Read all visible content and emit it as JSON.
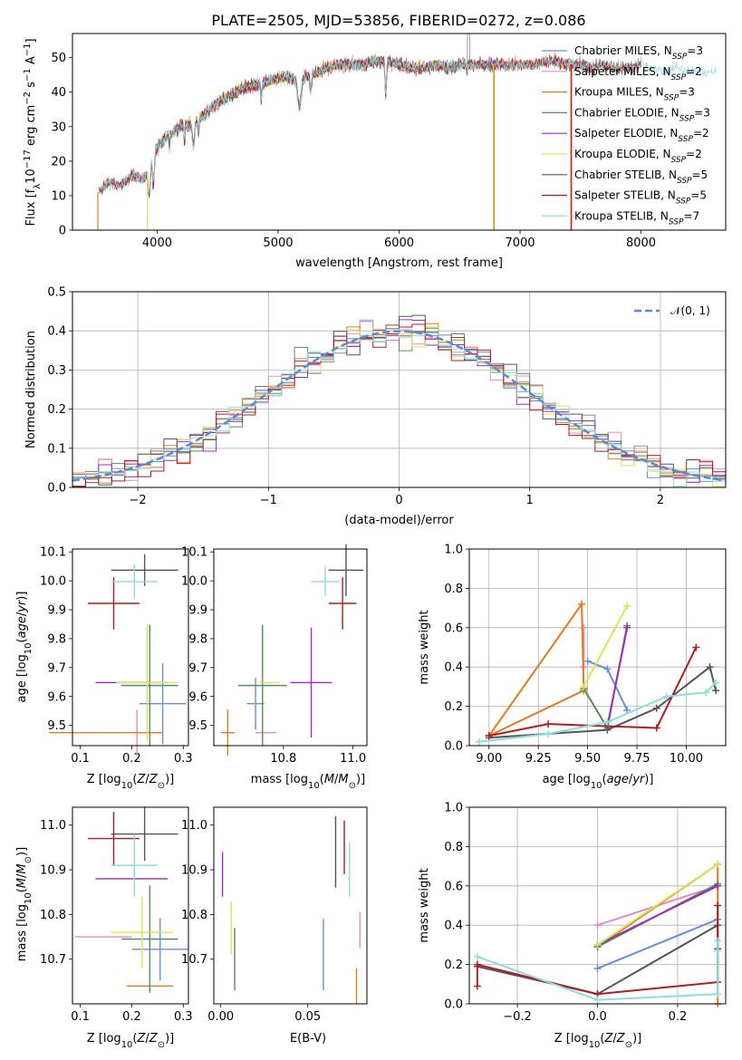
{
  "title": "PLATE=2505, MJD=53856, FIBERID=0272, z=0.086",
  "palette": {
    "Chabrier MILES": "#6b8fd6",
    "Salpeter MILES": "#e88cbf",
    "Kroupa MILES": "#e07b22",
    "Chabrier ELODIE": "#5a8a5a",
    "Salpeter ELODIE": "#9b2fb5",
    "Kroupa ELODIE": "#d9e35b",
    "Chabrier STELIB": "#555555",
    "Salpeter STELIB": "#b01c24",
    "Kroupa STELIB": "#8edbe0"
  },
  "chart_data": [
    {
      "type": "line",
      "panel": "spectrum",
      "title": "PLATE=2505, MJD=53856, FIBERID=0272, z=0.086",
      "xlabel": "wavelength [Angstrom, rest frame]",
      "ylabel": "Flux [f_λ10^-17 erg cm^-2 s^-1 A^-1]",
      "xlim": [
        3300,
        8700
      ],
      "ylim": [
        0,
        57
      ],
      "xticks": [
        "4000",
        "5000",
        "6000",
        "7000",
        "8000"
      ],
      "yticks": [
        "0",
        "10",
        "20",
        "30",
        "40",
        "50"
      ],
      "legend": [
        {
          "model": "Chabrier MILES",
          "label": "Chabrier MILES, N",
          "sub": "SSP",
          "eq": "=3"
        },
        {
          "model": "Salpeter MILES",
          "label": "Salpeter MILES, N",
          "sub": "SSP",
          "eq": "=2"
        },
        {
          "model": "Kroupa MILES",
          "label": "Kroupa MILES, N",
          "sub": "SSP",
          "eq": "=3"
        },
        {
          "model": "Chabrier ELODIE",
          "label": "Chabrier ELODIE, N",
          "sub": "SSP",
          "eq": "=3"
        },
        {
          "model": "Salpeter ELODIE",
          "label": "Salpeter ELODIE, N",
          "sub": "SSP",
          "eq": "=2"
        },
        {
          "model": "Kroupa ELODIE",
          "label": "Kroupa ELODIE, N",
          "sub": "SSP",
          "eq": "=2"
        },
        {
          "model": "Chabrier STELIB",
          "label": "Chabrier STELIB, N",
          "sub": "SSP",
          "eq": "=5"
        },
        {
          "model": "Salpeter STELIB",
          "label": "Salpeter STELIB, N",
          "sub": "SSP",
          "eq": "=5"
        },
        {
          "model": "Kroupa STELIB",
          "label": "Kroupa STELIB, N",
          "sub": "SSP",
          "eq": "=7"
        }
      ],
      "legend_position": "top-right",
      "continuum": [
        [
          3510,
          11
        ],
        [
          3600,
          14
        ],
        [
          3700,
          13
        ],
        [
          3800,
          16
        ],
        [
          3900,
          15
        ],
        [
          3950,
          20
        ],
        [
          4000,
          24
        ],
        [
          4100,
          28
        ],
        [
          4200,
          30
        ],
        [
          4300,
          31
        ],
        [
          4400,
          34
        ],
        [
          4500,
          37
        ],
        [
          4600,
          39
        ],
        [
          4700,
          41
        ],
        [
          4800,
          42
        ],
        [
          4900,
          43
        ],
        [
          5000,
          44
        ],
        [
          5100,
          44
        ],
        [
          5200,
          44
        ],
        [
          5300,
          45
        ],
        [
          5400,
          47
        ],
        [
          5500,
          48
        ],
        [
          5600,
          48
        ],
        [
          5700,
          48
        ],
        [
          5800,
          49
        ],
        [
          5900,
          49
        ],
        [
          6000,
          48
        ],
        [
          6100,
          47
        ],
        [
          6200,
          47
        ],
        [
          6300,
          48
        ],
        [
          6400,
          47
        ],
        [
          6500,
          48
        ],
        [
          6600,
          48
        ],
        [
          6700,
          48
        ],
        [
          6800,
          48
        ],
        [
          6900,
          48
        ],
        [
          7000,
          48
        ],
        [
          7100,
          48
        ],
        [
          7200,
          49
        ],
        [
          7300,
          49
        ],
        [
          7400,
          48
        ],
        [
          7500,
          48
        ],
        [
          7600,
          47
        ],
        [
          7700,
          48
        ],
        [
          7800,
          47
        ],
        [
          7900,
          47
        ],
        [
          8000,
          48
        ],
        [
          8100,
          47
        ],
        [
          8200,
          46
        ],
        [
          8300,
          47
        ],
        [
          8400,
          46
        ],
        [
          8500,
          46
        ],
        [
          8600,
          46
        ]
      ],
      "drops": [
        {
          "x": 3510,
          "model": "Kroupa MILES"
        },
        {
          "x": 3920,
          "model": "Kroupa ELODIE"
        },
        {
          "x": 6780,
          "model": "Kroupa ELODIE"
        },
        {
          "x": 6785,
          "model": "Kroupa MILES"
        },
        {
          "x": 7420,
          "model": "Kroupa MILES"
        },
        {
          "x": 7425,
          "model": "Salpeter STELIB"
        }
      ],
      "spikes": [
        6565,
        6585
      ]
    },
    {
      "type": "histogram",
      "panel": "residuals",
      "xlabel": "(data-model)/error",
      "ylabel": "Normed distribution",
      "xlim": [
        -2.5,
        2.5
      ],
      "ylim": [
        0,
        0.5
      ],
      "xticks": [
        "−2",
        "−1",
        "0",
        "1",
        "2"
      ],
      "yticks": [
        "0.0",
        "0.1",
        "0.2",
        "0.3",
        "0.4",
        "0.5"
      ],
      "legend": "𝒩(0, 1)",
      "legend_position": "top-right",
      "bin_width": 0.1
    },
    {
      "type": "scatter",
      "panel": "age-vs-Z",
      "xlabel": "Z [log10(Z/Z☉)]",
      "ylabel": "age [log10(age/yr)]",
      "xlim": [
        0.085,
        0.31
      ],
      "ylim": [
        9.43,
        10.11
      ],
      "xticks": [
        "0.1",
        "0.2",
        "0.3"
      ],
      "yticks": [
        "9.5",
        "9.6",
        "9.7",
        "9.8",
        "9.9",
        "10.0",
        "10.1"
      ],
      "points": [
        {
          "model": "Chabrier MILES",
          "x": 0.26,
          "y": 9.575,
          "xerr": 0.045,
          "yerr": 0.14
        },
        {
          "model": "Salpeter MILES",
          "x": 0.21,
          "y": 9.475,
          "xerr": 0.0,
          "yerr": 0.08
        },
        {
          "model": "Kroupa MILES",
          "x": 0.15,
          "y": 9.475,
          "xerr": 0.11,
          "yerr": 0.0
        },
        {
          "model": "Chabrier ELODIE",
          "x": 0.235,
          "y": 9.638,
          "xerr": 0.055,
          "yerr": 0.21
        },
        {
          "model": "Salpeter ELODIE",
          "x": 0.2,
          "y": 9.648,
          "xerr": 0.07,
          "yerr": 0.0
        },
        {
          "model": "Kroupa ELODIE",
          "x": 0.23,
          "y": 9.648,
          "xerr": 0.06,
          "yerr": 0.2
        },
        {
          "model": "Chabrier STELIB",
          "x": 0.225,
          "y": 10.037,
          "xerr": 0.065,
          "yerr": 0.055
        },
        {
          "model": "Salpeter STELIB",
          "x": 0.165,
          "y": 9.922,
          "xerr": 0.05,
          "yerr": 0.09
        },
        {
          "model": "Kroupa STELIB",
          "x": 0.205,
          "y": 9.997,
          "xerr": 0.045,
          "yerr": 0.06
        }
      ]
    },
    {
      "type": "scatter",
      "panel": "age-vs-mass",
      "xlabel": "mass [log10(M/M☉)]",
      "ylabel": "",
      "xlim": [
        10.6,
        11.04
      ],
      "ylim": [
        9.43,
        10.11
      ],
      "xticks": [
        "10.8",
        "11.0"
      ],
      "yticks": [
        "9.5",
        "9.6",
        "9.7",
        "9.8",
        "9.9",
        "10.0",
        "10.1"
      ],
      "points": [
        {
          "model": "Chabrier MILES",
          "x": 10.72,
          "y": 9.575,
          "xerr": 0.025,
          "yerr": 0.09
        },
        {
          "model": "Salpeter MILES",
          "x": 10.75,
          "y": 9.475,
          "xerr": 0.03,
          "yerr": 0.0
        },
        {
          "model": "Kroupa MILES",
          "x": 10.64,
          "y": 9.475,
          "xerr": 0.02,
          "yerr": 0.08
        },
        {
          "model": "Chabrier ELODIE",
          "x": 10.74,
          "y": 9.638,
          "xerr": 0.07,
          "yerr": 0.21
        },
        {
          "model": "Salpeter ELODIE",
          "x": 10.88,
          "y": 9.648,
          "xerr": 0.06,
          "yerr": 0.19
        },
        {
          "model": "Kroupa ELODIE",
          "x": 10.76,
          "y": 9.648,
          "xerr": 0.03,
          "yerr": 0.0
        },
        {
          "model": "Chabrier STELIB",
          "x": 10.98,
          "y": 10.037,
          "xerr": 0.05,
          "yerr": 0.09
        },
        {
          "model": "Salpeter STELIB",
          "x": 10.97,
          "y": 9.922,
          "xerr": 0.04,
          "yerr": 0.09
        },
        {
          "model": "Kroupa STELIB",
          "x": 10.92,
          "y": 9.997,
          "xerr": 0.04,
          "yerr": 0.05
        }
      ]
    },
    {
      "type": "line",
      "panel": "weight-vs-age",
      "xlabel": "age [log10(age/yr)]",
      "ylabel": "mass weight",
      "xlim": [
        8.9,
        10.2
      ],
      "ylim": [
        0,
        1.0
      ],
      "xticks": [
        "9.00",
        "9.25",
        "9.50",
        "9.75",
        "10.00"
      ],
      "yticks": [
        "0.0",
        "0.2",
        "0.4",
        "0.6",
        "0.8",
        "1.0"
      ],
      "series": [
        {
          "model": "Chabrier MILES",
          "points": [
            [
              9.5,
              0.43
            ],
            [
              9.6,
              0.39
            ],
            [
              9.7,
              0.18
            ]
          ]
        },
        {
          "model": "Salpeter MILES",
          "points": [
            [
              9.48,
              0.6
            ],
            [
              9.48,
              0.4
            ]
          ]
        },
        {
          "model": "Kroupa MILES",
          "points": [
            [
              9.0,
              0.05
            ],
            [
              9.47,
              0.72
            ],
            [
              9.48,
              0.28
            ],
            [
              9.0,
              0.05
            ]
          ]
        },
        {
          "model": "Chabrier ELODIE",
          "points": [
            [
              9.48,
              0.29
            ],
            [
              9.6,
              0.09
            ],
            [
              9.7,
              0.61
            ]
          ]
        },
        {
          "model": "Salpeter ELODIE",
          "points": [
            [
              9.6,
              0.1
            ],
            [
              9.7,
              0.6
            ]
          ]
        },
        {
          "model": "Kroupa ELODIE",
          "points": [
            [
              9.48,
              0.3
            ],
            [
              9.7,
              0.71
            ]
          ]
        },
        {
          "model": "Chabrier STELIB",
          "points": [
            [
              9.0,
              0.04
            ],
            [
              9.6,
              0.08
            ],
            [
              9.85,
              0.19
            ],
            [
              10.12,
              0.4
            ],
            [
              10.15,
              0.28
            ]
          ]
        },
        {
          "model": "Salpeter STELIB",
          "points": [
            [
              9.0,
              0.05
            ],
            [
              9.3,
              0.11
            ],
            [
              9.85,
              0.09
            ],
            [
              10.05,
              0.5
            ]
          ]
        },
        {
          "model": "Kroupa STELIB",
          "points": [
            [
              8.95,
              0.02
            ],
            [
              9.3,
              0.06
            ],
            [
              9.6,
              0.12
            ],
            [
              9.9,
              0.25
            ],
            [
              10.1,
              0.27
            ],
            [
              10.15,
              0.32
            ]
          ]
        }
      ]
    },
    {
      "type": "scatter",
      "panel": "mass-vs-Z",
      "xlabel": "Z [log10(Z/Z☉)]",
      "ylabel": "mass [log10(M/M☉)]",
      "xlim": [
        0.085,
        0.31
      ],
      "ylim": [
        10.6,
        11.04
      ],
      "xticks": [
        "0.1",
        "0.2",
        "0.3"
      ],
      "yticks": [
        "10.7",
        "10.8",
        "10.9",
        "11.0"
      ],
      "points": [
        {
          "model": "Chabrier MILES",
          "x": 0.255,
          "y": 10.722,
          "xerr": 0.055,
          "yerr": 0.07
        },
        {
          "model": "Salpeter MILES",
          "x": 0.145,
          "y": 10.75,
          "xerr": 0.055,
          "yerr": 0.0
        },
        {
          "model": "Kroupa MILES",
          "x": 0.235,
          "y": 10.64,
          "xerr": 0.045,
          "yerr": 0.0
        },
        {
          "model": "Chabrier ELODIE",
          "x": 0.235,
          "y": 10.745,
          "xerr": 0.055,
          "yerr": 0.12
        },
        {
          "model": "Salpeter ELODIE",
          "x": 0.2,
          "y": 10.88,
          "xerr": 0.07,
          "yerr": 0.0
        },
        {
          "model": "Kroupa ELODIE",
          "x": 0.22,
          "y": 10.76,
          "xerr": 0.06,
          "yerr": 0.08
        },
        {
          "model": "Chabrier STELIB",
          "x": 0.225,
          "y": 10.98,
          "xerr": 0.065,
          "yerr": 0.06
        },
        {
          "model": "Salpeter STELIB",
          "x": 0.165,
          "y": 10.97,
          "xerr": 0.05,
          "yerr": 0.06
        },
        {
          "model": "Kroupa STELIB",
          "x": 0.205,
          "y": 10.91,
          "xerr": 0.045,
          "yerr": 0.07
        }
      ]
    },
    {
      "type": "scatter",
      "panel": "mass-vs-EBV",
      "xlabel": "E(B-V)",
      "ylabel": "",
      "xlim": [
        -0.004,
        0.084
      ],
      "ylim": [
        10.6,
        11.04
      ],
      "xticks": [
        "0.00",
        "0.05"
      ],
      "yticks": [
        "10.7",
        "10.8",
        "10.9",
        "11.0"
      ],
      "points": [
        {
          "model": "Chabrier MILES",
          "x": 0.059,
          "y": 10.71,
          "xerr": 0.0,
          "yerr": 0.08
        },
        {
          "model": "Salpeter MILES",
          "x": 0.08,
          "y": 10.765,
          "xerr": 0.0,
          "yerr": 0.04
        },
        {
          "model": "Kroupa MILES",
          "x": 0.078,
          "y": 10.64,
          "xerr": 0.0,
          "yerr": 0.04
        },
        {
          "model": "Chabrier ELODIE",
          "x": 0.008,
          "y": 10.7,
          "xerr": 0.0,
          "yerr": 0.07
        },
        {
          "model": "Salpeter ELODIE",
          "x": 0.001,
          "y": 10.89,
          "xerr": 0.0,
          "yerr": 0.05
        },
        {
          "model": "Kroupa ELODIE",
          "x": 0.006,
          "y": 10.77,
          "xerr": 0.0,
          "yerr": 0.06
        },
        {
          "model": "Chabrier STELIB",
          "x": 0.066,
          "y": 10.94,
          "xerr": 0.0,
          "yerr": 0.08
        },
        {
          "model": "Salpeter STELIB",
          "x": 0.071,
          "y": 10.95,
          "xerr": 0.0,
          "yerr": 0.06
        },
        {
          "model": "Kroupa STELIB",
          "x": 0.074,
          "y": 10.9,
          "xerr": 0.0,
          "yerr": 0.06
        }
      ]
    },
    {
      "type": "line",
      "panel": "weight-vs-Z",
      "xlabel": "Z [log10(Z/Z☉)]",
      "ylabel": "mass weight",
      "xlim": [
        -0.32,
        0.32
      ],
      "ylim": [
        0,
        1.0
      ],
      "xticks": [
        "−0.2",
        "0.0",
        "0.2"
      ],
      "yticks": [
        "0.0",
        "0.2",
        "0.4",
        "0.6",
        "0.8",
        "1.0"
      ],
      "series": [
        {
          "model": "Chabrier MILES",
          "points": [
            [
              0.0,
              0.18
            ],
            [
              0.3,
              0.43
            ]
          ]
        },
        {
          "model": "Salpeter MILES",
          "points": [
            [
              0.0,
              0.4
            ],
            [
              0.3,
              0.6
            ]
          ]
        },
        {
          "model": "Kroupa MILES",
          "points": [
            [
              0.0,
              0.29
            ],
            [
              0.3,
              0.71
            ],
            [
              0.3,
              0.0
            ]
          ]
        },
        {
          "model": "Chabrier ELODIE",
          "points": [
            [
              0.0,
              0.29
            ],
            [
              0.3,
              0.61
            ]
          ]
        },
        {
          "model": "Salpeter ELODIE",
          "points": [
            [
              0.0,
              0.3
            ],
            [
              0.3,
              0.6
            ]
          ]
        },
        {
          "model": "Kroupa ELODIE",
          "points": [
            [
              0.0,
              0.3
            ],
            [
              0.3,
              0.71
            ]
          ]
        },
        {
          "model": "Chabrier STELIB",
          "points": [
            [
              -0.3,
              0.19
            ],
            [
              0.0,
              0.05
            ],
            [
              0.3,
              0.4
            ],
            [
              0.3,
              0.28
            ]
          ]
        },
        {
          "model": "Salpeter STELIB",
          "points": [
            [
              -0.3,
              0.09
            ],
            [
              -0.3,
              0.2
            ],
            [
              0.0,
              0.05
            ],
            [
              0.3,
              0.11
            ],
            [
              0.3,
              0.5
            ]
          ]
        },
        {
          "model": "Kroupa STELIB",
          "points": [
            [
              -0.3,
              0.24
            ],
            [
              0.0,
              0.02
            ],
            [
              0.3,
              0.05
            ],
            [
              0.3,
              0.32
            ],
            [
              0.3,
              0.27
            ]
          ]
        }
      ]
    }
  ]
}
